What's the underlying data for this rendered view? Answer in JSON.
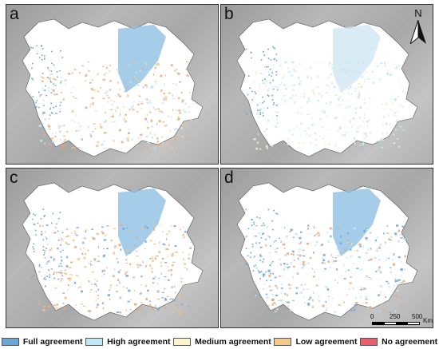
{
  "panels": [
    {
      "letter": "a",
      "dominant": [
        "#f2c389",
        "#e8a877",
        "#bfe7f2"
      ]
    },
    {
      "letter": "b",
      "dominant": [
        "#bfe7f2",
        "#f4efc7",
        "#d6eef6"
      ]
    },
    {
      "letter": "c",
      "dominant": [
        "#f2c389",
        "#e8a877",
        "#6fa8dc"
      ]
    },
    {
      "letter": "d",
      "dominant": [
        "#e8a877",
        "#bfe7f2",
        "#6fa8dc"
      ]
    }
  ],
  "north_arrow": {
    "label": "N"
  },
  "scale_bar": {
    "ticks": [
      "0",
      "250",
      "500"
    ],
    "unit": "Km"
  },
  "legend": [
    {
      "label": "Full agreement",
      "color": "#6aa6d6"
    },
    {
      "label": "High agreement",
      "color": "#bfe9f5"
    },
    {
      "label": "Medium agreement",
      "color": "#fbf4cf"
    },
    {
      "label": "Low agreement",
      "color": "#f5c98e"
    },
    {
      "label": "No agreement",
      "color": "#e8606b"
    }
  ]
}
